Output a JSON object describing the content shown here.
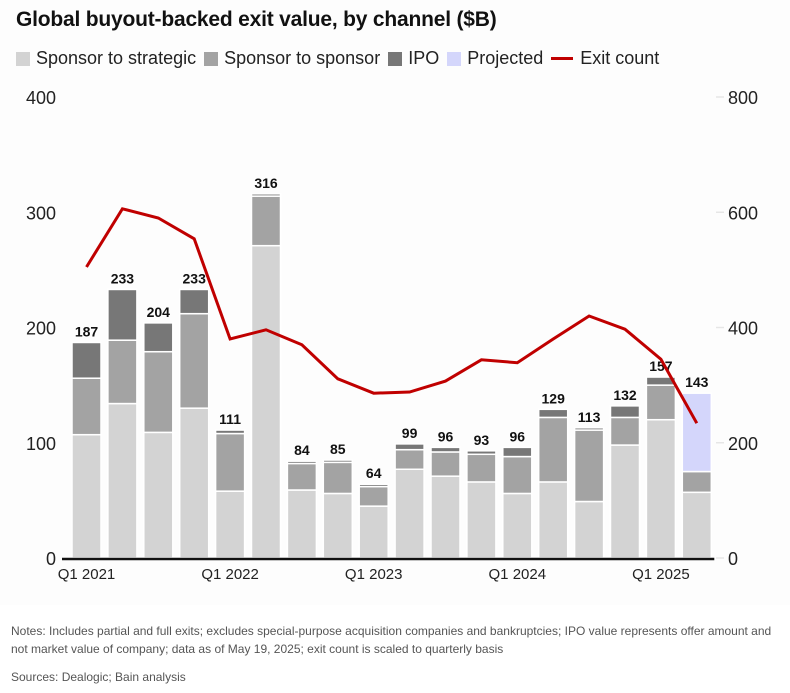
{
  "chart_data": {
    "type": "bar",
    "stacked": true,
    "title": "Global buyout-backed exit value, by channel ($B)",
    "xlabel": "",
    "ylabel": "",
    "ylim": [
      0,
      400
    ],
    "y_ticks": [
      0,
      100,
      200,
      300,
      400
    ],
    "y2lim": [
      0,
      800
    ],
    "y2_ticks": [
      0,
      200,
      400,
      600,
      800
    ],
    "grid": false,
    "legend_position": "top-left",
    "categories": [
      "Q1 2021",
      "Q2 2021",
      "Q3 2021",
      "Q4 2021",
      "Q1 2022",
      "Q2 2022",
      "Q3 2022",
      "Q4 2022",
      "Q1 2023",
      "Q2 2023",
      "Q3 2023",
      "Q4 2023",
      "Q1 2024",
      "Q2 2024",
      "Q3 2024",
      "Q4 2024",
      "Q1 2025",
      "Q2 2025"
    ],
    "x_tick_labels": [
      {
        "index": 0,
        "label": "Q1 2021"
      },
      {
        "index": 4,
        "label": "Q1 2022"
      },
      {
        "index": 8,
        "label": "Q1 2023"
      },
      {
        "index": 12,
        "label": "Q1 2024"
      },
      {
        "index": 16,
        "label": "Q1 2025"
      }
    ],
    "series": [
      {
        "name": "Sponsor to strategic",
        "color": "#d3d3d3",
        "axis": "left",
        "kind": "bar",
        "values": [
          107,
          134,
          109,
          130,
          58,
          271,
          59,
          56,
          45,
          77,
          71,
          66,
          56,
          66,
          49,
          98,
          120,
          57
        ]
      },
      {
        "name": "Sponsor to sponsor",
        "color": "#a3a3a3",
        "axis": "left",
        "kind": "bar",
        "values": [
          49,
          55,
          70,
          82,
          50,
          43,
          23,
          27,
          17,
          17,
          21,
          24,
          32,
          56,
          62,
          24,
          30,
          18
        ]
      },
      {
        "name": "IPO",
        "color": "#777777",
        "axis": "left",
        "kind": "bar",
        "values": [
          31,
          44,
          25,
          21,
          3,
          2,
          2,
          2,
          2,
          5,
          4,
          3,
          8,
          7,
          2,
          10,
          7,
          0
        ]
      },
      {
        "name": "Projected",
        "color": "#d4d6fb",
        "axis": "left",
        "kind": "bar",
        "values": [
          0,
          0,
          0,
          0,
          0,
          0,
          0,
          0,
          0,
          0,
          0,
          0,
          0,
          0,
          0,
          0,
          0,
          68
        ]
      },
      {
        "name": "Exit count",
        "color": "#c00000",
        "axis": "right",
        "kind": "line",
        "values": [
          505,
          606,
          590,
          554,
          380,
          396,
          370,
          311,
          286,
          288,
          307,
          344,
          339,
          380,
          420,
          397,
          345,
          234
        ]
      }
    ],
    "totals": [
      187,
      233,
      204,
      233,
      111,
      316,
      84,
      85,
      64,
      99,
      96,
      93,
      96,
      129,
      113,
      132,
      157,
      143
    ]
  },
  "legend": [
    {
      "label": "Sponsor to strategic",
      "color": "#d3d3d3",
      "kind": "square"
    },
    {
      "label": "Sponsor to sponsor",
      "color": "#a3a3a3",
      "kind": "square"
    },
    {
      "label": "IPO",
      "color": "#777777",
      "kind": "square"
    },
    {
      "label": "Projected",
      "color": "#d4d6fb",
      "kind": "square"
    },
    {
      "label": "Exit count",
      "color": "#c00000",
      "kind": "line"
    }
  ],
  "footer": {
    "notes": "Notes: Includes partial and full exits; excludes special-purpose acquisition companies and bankruptcies; IPO value represents offer amount and not market value of company; data as of May 19, 2025; exit count is scaled to quarterly basis",
    "sources": "Sources: Dealogic; Bain analysis"
  }
}
